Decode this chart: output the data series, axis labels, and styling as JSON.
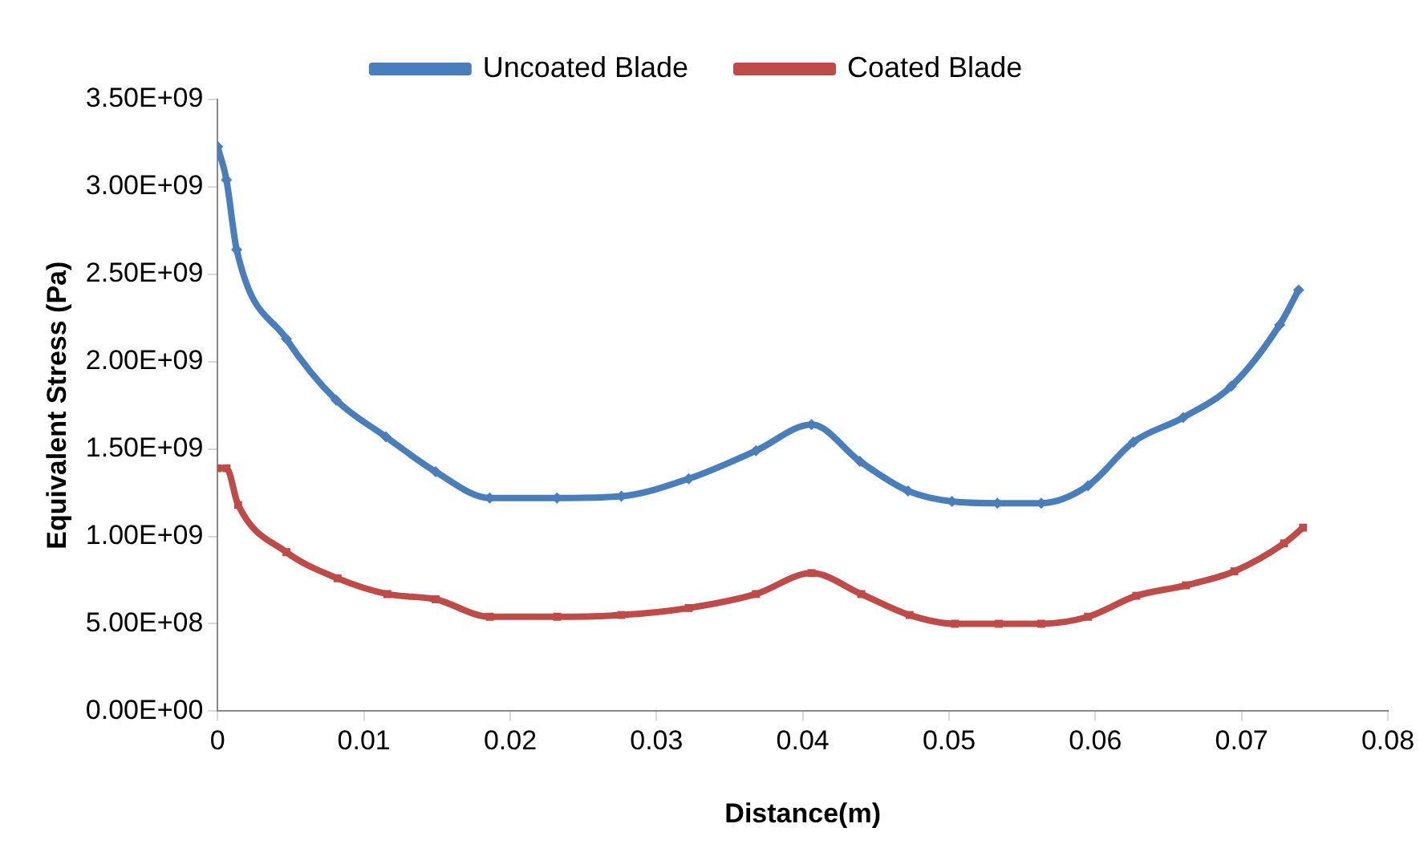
{
  "chart_data": {
    "type": "line",
    "xlabel": "Distance(m)",
    "ylabel": "Equivalent Stress (Pa)",
    "xlim": [
      0,
      0.08
    ],
    "xticks": [
      0,
      0.01,
      0.02,
      0.03,
      0.04,
      0.05,
      0.06,
      0.07,
      0.08
    ],
    "ylim": [
      0,
      3500000000
    ],
    "yticks": [
      {
        "value": 0,
        "label": "0.00E+00"
      },
      {
        "value": 500000000,
        "label": "5.00E+08"
      },
      {
        "value": 1000000000,
        "label": "1.00E+09"
      },
      {
        "value": 1500000000,
        "label": "1.50E+09"
      },
      {
        "value": 2000000000,
        "label": "2.00E+09"
      },
      {
        "value": 2500000000,
        "label": "2.50E+09"
      },
      {
        "value": 3000000000,
        "label": "3.00E+09"
      },
      {
        "value": 3500000000,
        "label": "3.50E+09"
      }
    ],
    "grid": false,
    "legend": "top",
    "line_style": "solid",
    "series": [
      {
        "name": "Uncoated Blade",
        "color": "#4a7ebb",
        "marker": "diamond",
        "x": [
          0,
          0.0006,
          0.0013,
          0.0047,
          0.0081,
          0.0115,
          0.0149,
          0.0186,
          0.0232,
          0.0276,
          0.0322,
          0.0368,
          0.0406,
          0.0439,
          0.0472,
          0.0502,
          0.0533,
          0.0563,
          0.0595,
          0.0626,
          0.066,
          0.0693,
          0.0726,
          0.0739
        ],
        "values": [
          3230000000,
          3040000000,
          2640000000,
          2130000000,
          1780000000,
          1570000000,
          1370000000,
          1220000000,
          1220000000,
          1230000000,
          1330000000,
          1490000000,
          1640000000,
          1430000000,
          1260000000,
          1200000000,
          1190000000,
          1190000000,
          1290000000,
          1540000000,
          1680000000,
          1860000000,
          2210000000,
          2410000000
        ]
      },
      {
        "name": "Coated Blade",
        "color": "#be4b48",
        "marker": "square",
        "x": [
          0,
          0.0006,
          0.0014,
          0.0047,
          0.0082,
          0.0116,
          0.0149,
          0.0186,
          0.0232,
          0.0276,
          0.0322,
          0.0368,
          0.0406,
          0.044,
          0.0473,
          0.0504,
          0.0534,
          0.0563,
          0.0595,
          0.0628,
          0.0662,
          0.0695,
          0.0729,
          0.0742
        ],
        "values": [
          1390000000,
          1390000000,
          1180000000,
          910000000,
          760000000,
          670000000,
          640000000,
          540000000,
          540000000,
          550000000,
          590000000,
          670000000,
          790000000,
          670000000,
          550000000,
          500000000,
          500000000,
          500000000,
          540000000,
          660000000,
          720000000,
          800000000,
          960000000,
          1050000000
        ]
      }
    ]
  }
}
